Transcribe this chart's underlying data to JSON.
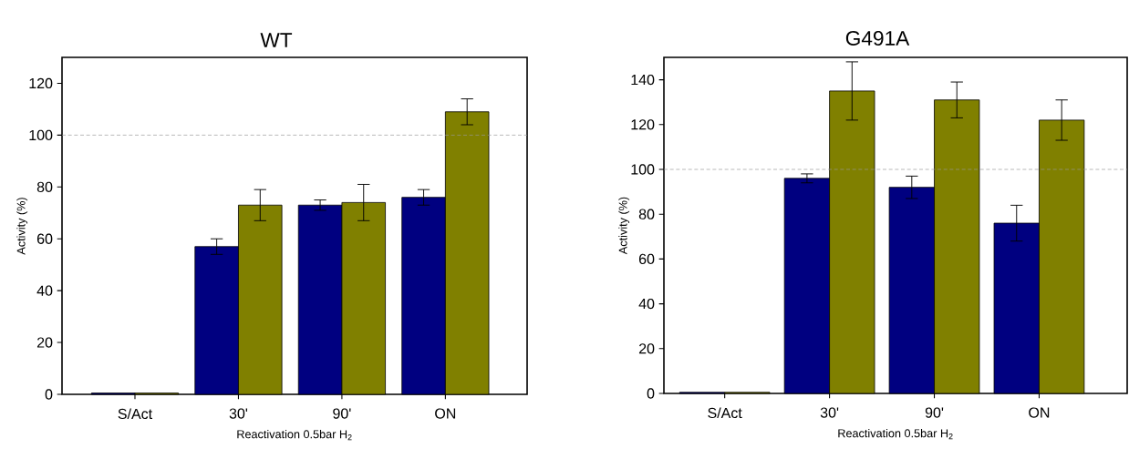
{
  "chart_data": [
    {
      "type": "bar",
      "title": "WT",
      "xlabel": "Reactivation 0.5bar H$_{2}$",
      "ylabel": "Activity (%)",
      "categories": [
        "S/Act",
        "30'",
        "90'",
        "ON"
      ],
      "ylim": [
        0,
        130
      ],
      "yticks": [
        0,
        20,
        40,
        60,
        80,
        100,
        120
      ],
      "series": [
        {
          "color": "#000080",
          "values": [
            0.5,
            57,
            73,
            76
          ],
          "errors": [
            null,
            3,
            2,
            3
          ]
        },
        {
          "color": "#808000",
          "values": [
            0.5,
            73,
            74,
            109
          ],
          "errors": [
            null,
            6,
            7,
            5
          ]
        }
      ],
      "ref_lines": [
        {
          "axis": "y",
          "value": 100,
          "color": "#999999",
          "line_style": "dashed"
        }
      ]
    },
    {
      "type": "bar",
      "title": "G491A",
      "xlabel": "Reactivation 0.5bar H$_{2}$",
      "ylabel": "Activity (%)",
      "categories": [
        "S/Act",
        "30'",
        "90'",
        "ON"
      ],
      "ylim": [
        0,
        150
      ],
      "yticks": [
        0,
        20,
        40,
        60,
        80,
        100,
        120,
        140
      ],
      "series": [
        {
          "color": "#000080",
          "values": [
            0.5,
            96,
            92,
            76
          ],
          "errors": [
            null,
            2,
            5,
            8
          ]
        },
        {
          "color": "#808000",
          "values": [
            0.5,
            135,
            131,
            122
          ],
          "errors": [
            null,
            13,
            8,
            9
          ]
        }
      ],
      "ref_lines": [
        {
          "axis": "y",
          "value": 100,
          "color": "#999999",
          "line_style": "dashed"
        }
      ]
    }
  ]
}
